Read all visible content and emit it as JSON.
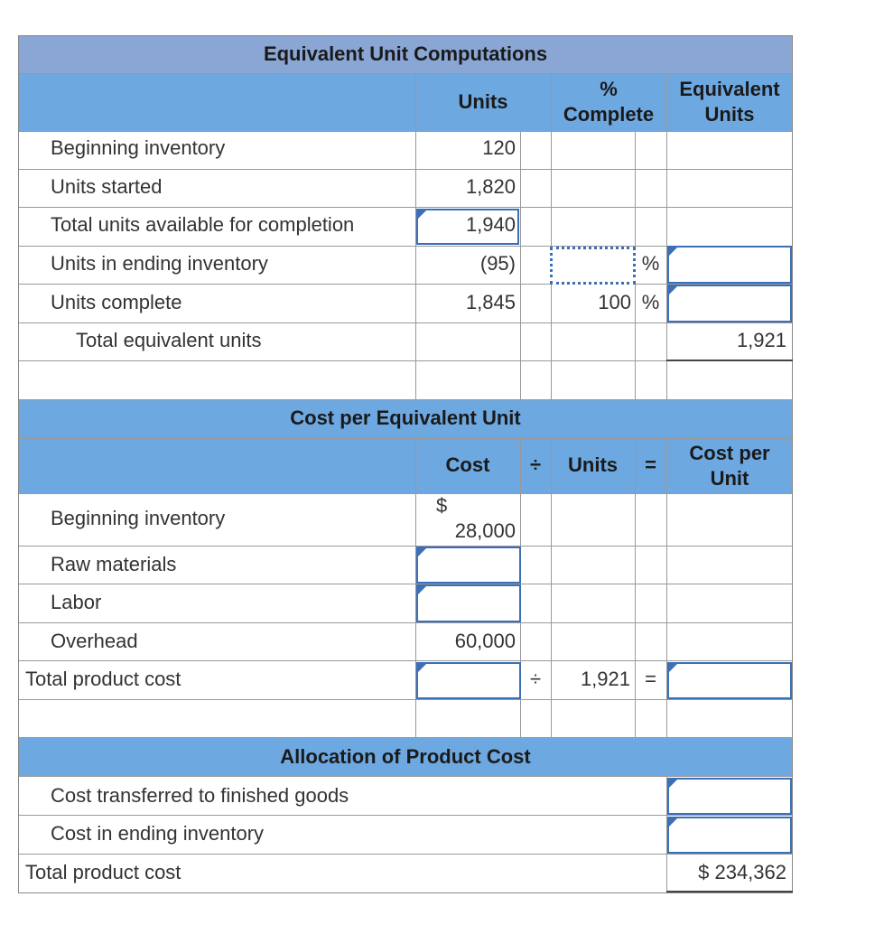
{
  "equiv": {
    "title": "Equivalent Unit Computations",
    "col_units": "Units",
    "col_pct_1": "%",
    "col_pct_2": "Complete",
    "col_eq_1": "Equivalent",
    "col_eq_2": "Units",
    "rows": [
      {
        "label": "Beginning inventory",
        "units": "120"
      },
      {
        "label": "Units started",
        "units": "1,820"
      },
      {
        "label": "Total units available for completion",
        "units": "1,940"
      },
      {
        "label": "Units in ending inventory",
        "units": "(95)",
        "pct_sign": "%"
      },
      {
        "label": "Units complete",
        "units": "1,845",
        "pct": "100",
        "pct_sign": "%"
      }
    ],
    "total_label": "Total equivalent units",
    "total_value": "1,921"
  },
  "cost": {
    "title": "Cost per Equivalent Unit",
    "col_cost": "Cost",
    "div_sign": "÷",
    "col_units": "Units",
    "eq_sign": "=",
    "col_cpu_1": "Cost per",
    "col_cpu_2": "Unit",
    "beginning_label": "Beginning inventory",
    "dollar": "$",
    "beginning_value": "28,000",
    "raw_label": "Raw materials",
    "labor_label": "Labor",
    "overhead_label": "Overhead",
    "overhead_value": "60,000",
    "total_label": "Total product cost",
    "total_units": "1,921"
  },
  "alloc": {
    "title": "Allocation of Product Cost",
    "transferred_label": "Cost transferred to finished goods",
    "ending_label": "Cost in ending inventory",
    "total_label": "Total product cost",
    "total_value": "$ 234,362"
  },
  "colors": {
    "header_blue": "#6ea8e0",
    "title_blue": "#8aa6d4",
    "input_border": "#3b6fb8"
  }
}
